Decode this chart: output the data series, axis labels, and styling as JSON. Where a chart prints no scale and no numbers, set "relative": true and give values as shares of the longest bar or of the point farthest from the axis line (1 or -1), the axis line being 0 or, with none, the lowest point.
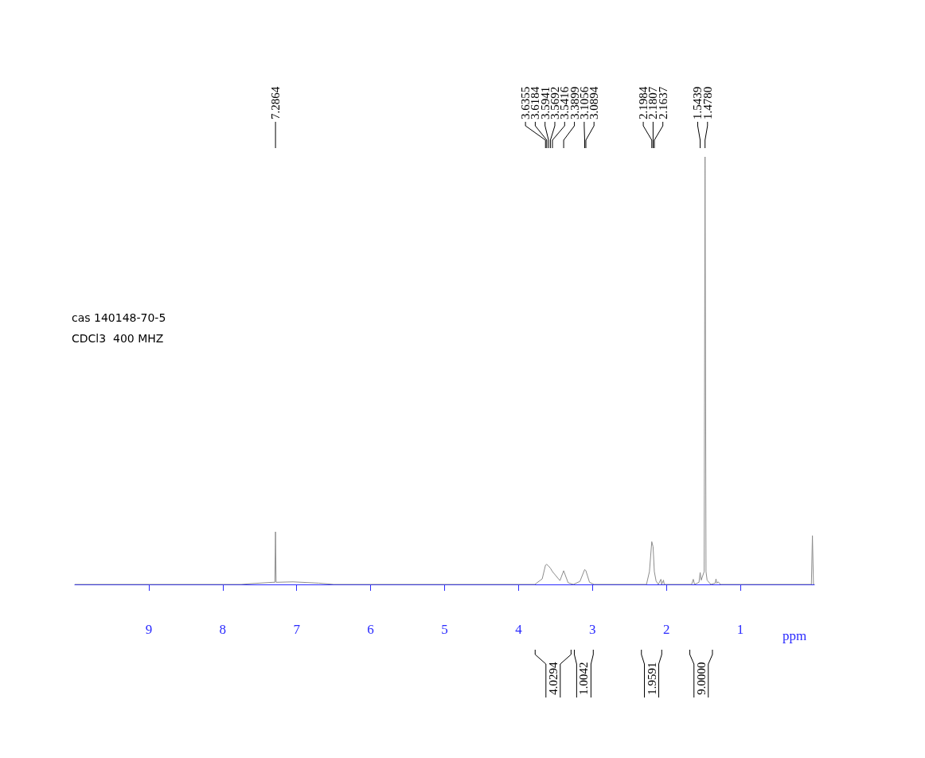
{
  "chart_data": {
    "type": "line",
    "relative": true,
    "xlabel": "ppm",
    "xlim": [
      10,
      0
    ],
    "xticks": [
      1,
      2,
      3,
      4,
      5,
      6,
      7,
      8,
      9
    ],
    "grid": false,
    "marker": "none",
    "line_style": "solid",
    "series": [
      {
        "color": "#8c8c8c",
        "x": [
          10,
          7.75,
          7.6,
          7.32,
          7.295,
          7.2864,
          7.278,
          7.05,
          6.7,
          6.5,
          3.78,
          3.68,
          3.6355,
          3.6184,
          3.5941,
          3.5692,
          3.5416,
          3.46,
          3.44,
          3.3899,
          3.33,
          3.26,
          3.17,
          3.1056,
          3.0894,
          3.04,
          2.98,
          2.27,
          2.23,
          2.1984,
          2.1807,
          2.1637,
          2.14,
          2.11,
          2.075,
          2.065,
          2.04,
          2.03,
          1.66,
          1.637,
          1.62,
          1.56,
          1.5439,
          1.53,
          1.49,
          1.478,
          1.465,
          1.45,
          1.4,
          1.34,
          1.33,
          1.32,
          1.3,
          1.27,
          0.04,
          0.026,
          0.012,
          0
        ],
        "values": [
          0,
          0,
          0.002,
          0.005,
          0.005,
          0.123,
          0.005,
          0.006,
          0.003,
          0,
          0,
          0.013,
          0.045,
          0.047,
          0.043,
          0.038,
          0.03,
          0.013,
          0.009,
          0.032,
          0.004,
          0,
          0.007,
          0.035,
          0.032,
          0.005,
          0,
          0,
          0.03,
          0.1,
          0.088,
          0.03,
          0.008,
          0,
          0.012,
          0,
          0.01,
          0,
          0,
          0.012,
          0,
          0.005,
          0.028,
          0.01,
          0.03,
          1,
          0.03,
          0.01,
          0,
          0.003,
          0.013,
          0.003,
          0.006,
          0,
          0,
          0.114,
          0,
          0
        ]
      }
    ],
    "annotations": [
      "cas 140148-70-5",
      "CDCl3  400 MHZ",
      "7.2864",
      "3.6355",
      "3.6184",
      "3.5941",
      "3.5692",
      "3.5416",
      "3.3899",
      "3.1056",
      "3.0894",
      "2.1984",
      "2.1807",
      "2.1637",
      "1.5439",
      "1.4780",
      "4.0294",
      "1.0042",
      "1.9591",
      "9.0000"
    ]
  }
}
